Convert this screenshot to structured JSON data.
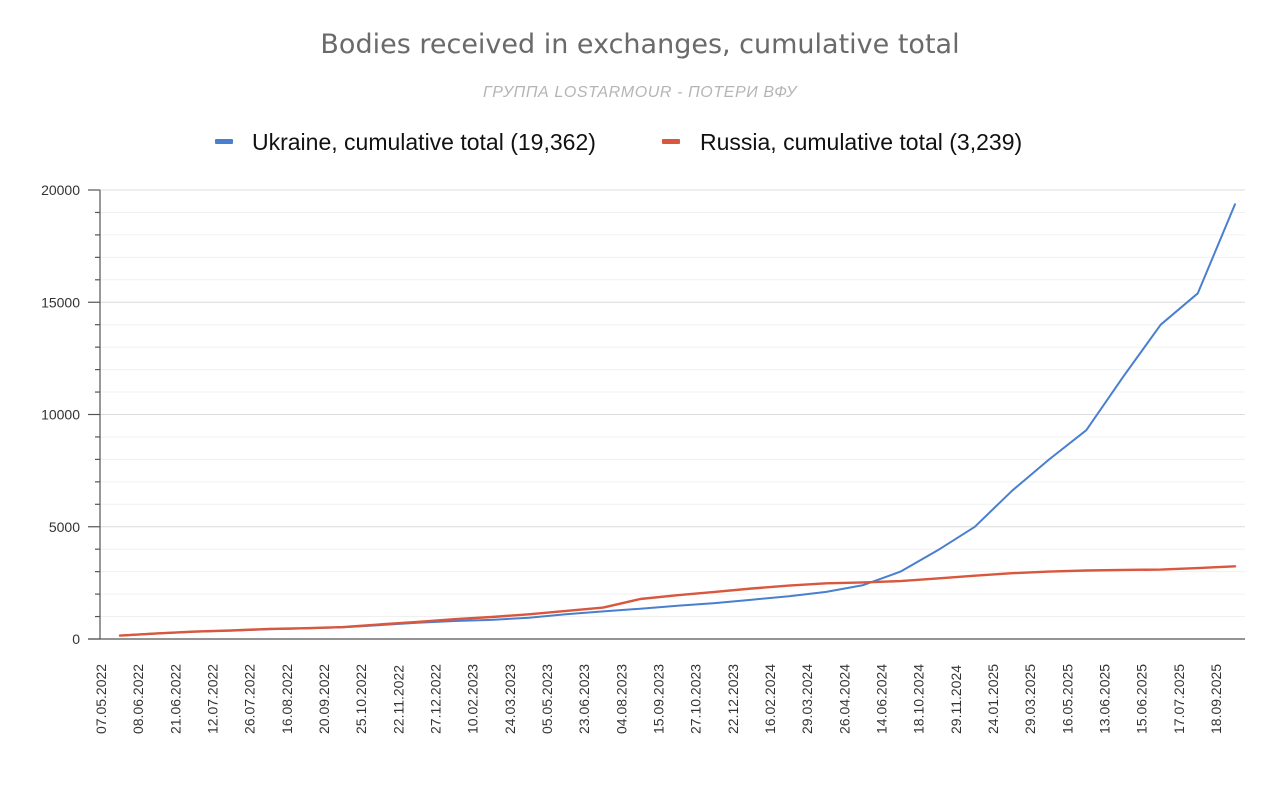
{
  "chart_data": {
    "type": "line",
    "title": "Bodies received in exchanges, cumulative total",
    "subtitle": "ГРУППА LOSTARMOUR - ПОТЕРИ ВФУ",
    "legend_position": "top-center",
    "grid": true,
    "ylim": [
      0,
      20000
    ],
    "yticks": [
      "0",
      "5000",
      "10000",
      "15000",
      "20000"
    ],
    "ytick_values": [
      0,
      5000,
      10000,
      15000,
      20000
    ],
    "categories": [
      "07.05.2022",
      "08.06.2022",
      "21.06.2022",
      "12.07.2022",
      "26.07.2022",
      "16.08.2022",
      "20.09.2022",
      "25.10.2022",
      "22.11.2022",
      "27.12.2022",
      "10.02.2023",
      "24.03.2023",
      "05.05.2023",
      "23.06.2023",
      "04.08.2023",
      "15.09.2023",
      "27.10.2023",
      "22.12.2023",
      "16.02.2024",
      "29.03.2024",
      "26.04.2024",
      "14.06.2024",
      "18.10.2024",
      "29.11.2024",
      "24.01.2025",
      "29.03.2025",
      "16.05.2025",
      "13.06.2025",
      "15.06.2025",
      "17.07.2025",
      "18.09.2025"
    ],
    "series": [
      {
        "name": "Ukraine, cumulative total (19,362)",
        "color": "#4a7fd0",
        "values": [
          150,
          250,
          320,
          380,
          430,
          470,
          520,
          620,
          720,
          800,
          850,
          950,
          1100,
          1230,
          1350,
          1480,
          1600,
          1750,
          1900,
          2100,
          2400,
          3000,
          3950,
          5000,
          6600,
          8000,
          9300,
          11700,
          14000,
          15400,
          19362
        ]
      },
      {
        "name": "Russia, cumulative total (3,239)",
        "color": "#d9573d",
        "values": [
          150,
          250,
          330,
          380,
          450,
          480,
          530,
          650,
          760,
          880,
          980,
          1100,
          1250,
          1400,
          1780,
          1950,
          2100,
          2250,
          2380,
          2480,
          2520,
          2580,
          2700,
          2820,
          2930,
          3000,
          3050,
          3080,
          3090,
          3160,
          3239
        ]
      }
    ]
  }
}
